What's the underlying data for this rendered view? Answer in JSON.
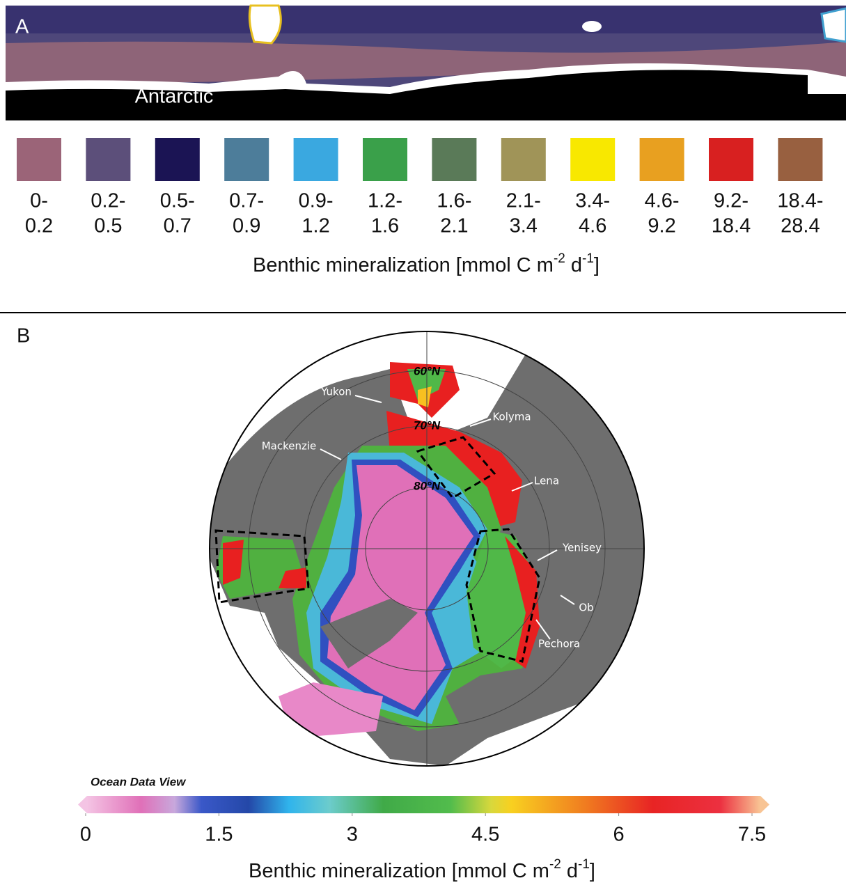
{
  "panel_a": {
    "label": "A",
    "region_label": "Antarctic",
    "legend": {
      "items": [
        {
          "lines": [
            "0-",
            "0.2"
          ],
          "color": "#9b6478"
        },
        {
          "lines": [
            "0.2-",
            "0.5"
          ],
          "color": "#5c4f7a"
        },
        {
          "lines": [
            "0.5-",
            "0.7"
          ],
          "color": "#1b1454"
        },
        {
          "lines": [
            "0.7-",
            "0.9"
          ],
          "color": "#4d7d9a"
        },
        {
          "lines": [
            "0.9-",
            "1.2"
          ],
          "color": "#3aa8e0"
        },
        {
          "lines": [
            "1.2-",
            "1.6"
          ],
          "color": "#3aa04a"
        },
        {
          "lines": [
            "1.6-",
            "2.1"
          ],
          "color": "#5a7a58"
        },
        {
          "lines": [
            "2.1-",
            "3.4"
          ],
          "color": "#a09458"
        },
        {
          "lines": [
            "3.4-",
            "4.6"
          ],
          "color": "#f8e800"
        },
        {
          "lines": [
            "4.6-",
            "9.2"
          ],
          "color": "#e8a020"
        },
        {
          "lines": [
            "9.2-",
            "18.4"
          ],
          "color": "#d82020"
        },
        {
          "lines": [
            "18.4-",
            "28.4"
          ],
          "color": "#986040"
        }
      ],
      "axis_label": [
        "Benthic mineralization [mmol C m",
        "-2",
        "d",
        "-1",
        "]"
      ]
    }
  },
  "panel_b": {
    "label": "B",
    "latitude_labels": [
      "60°N",
      "70°N",
      "80°N"
    ],
    "river_labels": [
      "Yukon",
      "Kolyma",
      "Mackenzie",
      "Lena",
      "Yenisey",
      "Ob",
      "Pechora"
    ],
    "software_label": "Ocean Data View",
    "colorbar": {
      "clim": [
        0,
        7.5
      ],
      "ticks": [
        0,
        1.5,
        3,
        4.5,
        6,
        7.5
      ],
      "axis_label": [
        "Benthic mineralization [mmol C m",
        "-2",
        "d",
        "-1",
        "]"
      ]
    }
  }
}
